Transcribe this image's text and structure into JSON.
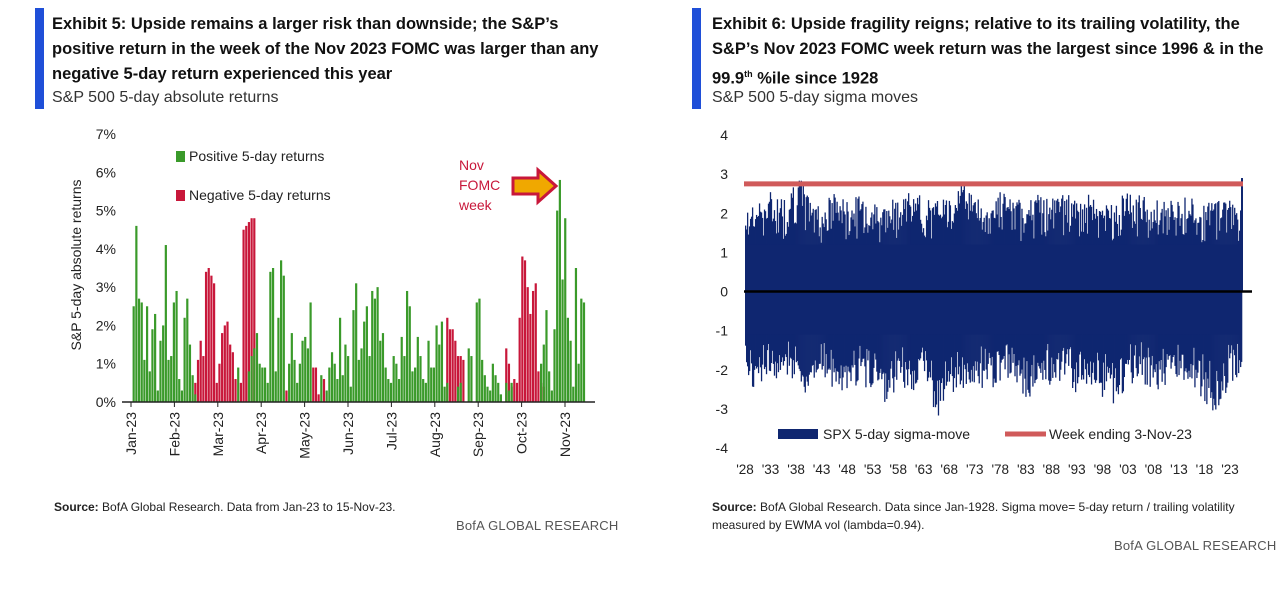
{
  "left": {
    "title_line1": "Exhibit 5: Upside remains a larger risk than downside; the S&P’s",
    "title_line2": "positive return in the week of the Nov 2023 FOMC was larger than any",
    "title_line3": "negative 5-day return experienced this year",
    "subtitle": "S&P 500 5-day absolute returns",
    "source_label": "Source:",
    "source_text": "BofA Global Research. Data from Jan-23 to 15-Nov-23.",
    "brand": "BofA GLOBAL RESEARCH",
    "annotation": [
      "Nov",
      "FOMC",
      "week"
    ]
  },
  "right": {
    "title_line1": "Exhibit 6: Upside fragility reigns; relative to its trailing volatility, the",
    "title_line2": "S&P’s Nov 2023 FOMC week return was the largest since 1996 & in the",
    "title_line3_pre": "99.9",
    "title_line3_sup": "th",
    "title_line3_post": " %ile since 1928",
    "subtitle": "S&P 500 5-day sigma moves",
    "source_label": "Source:",
    "source_text_1": "BofA Global Research. Data since Jan-1928. Sigma move= 5-day return / trailing volatility",
    "source_text_2": "measured by EWMA vol (lambda=0.94).",
    "brand": "BofA GLOBAL RESEARCH"
  },
  "colors": {
    "accent": "#1f4fd8",
    "positive": "#3a9a2a",
    "negative": "#c8173a",
    "sigma": "#0f2670",
    "threshold": "#d05a5a",
    "arrow_fill": "#f0a800",
    "arrow_stroke": "#c8173a",
    "annotation_text": "#c8173a"
  },
  "chart_data": [
    {
      "type": "bar",
      "ylabel": "S&P 5-day absolute returns",
      "ylim": [
        0,
        7
      ],
      "y_ticks": [
        "0%",
        "1%",
        "2%",
        "3%",
        "4%",
        "5%",
        "6%",
        "7%"
      ],
      "x_tick_labels": [
        "Jan-23",
        "Feb-23",
        "Mar-23",
        "Apr-23",
        "May-23",
        "Jun-23",
        "Jul-23",
        "Aug-23",
        "Sep-23",
        "Oct-23",
        "Nov-23"
      ],
      "legend": [
        "Positive 5-day returns",
        "Negative 5-day returns"
      ],
      "legend_position": "top-left",
      "grid": false,
      "series": [
        {
          "name": "Positive 5-day returns",
          "values": [
            0,
            2.5,
            4.6,
            2.7,
            2.6,
            1.1,
            2.5,
            0.8,
            1.9,
            2.3,
            0.3,
            1.6,
            2.0,
            4.1,
            1.1,
            1.2,
            2.6,
            2.9,
            0.6,
            0.3,
            2.2,
            2.7,
            1.5,
            0.7,
            0.2,
            0,
            0,
            0,
            0,
            0,
            0,
            0,
            0,
            0,
            0,
            0,
            0,
            0,
            0,
            0,
            0.9,
            0,
            0,
            0,
            0.8,
            1.2,
            1.4,
            1.8,
            1.0,
            0.9,
            0.9,
            0.5,
            3.4,
            3.5,
            0.8,
            2.2,
            3.7,
            3.3,
            0,
            1.0,
            1.8,
            1.1,
            0.5,
            1.0,
            1.6,
            1.7,
            1.4,
            2.6,
            0,
            0,
            0,
            0.7,
            0,
            0.3,
            0.9,
            1.3,
            1.0,
            0.6,
            2.2,
            0.7,
            1.5,
            1.2,
            0.4,
            2.4,
            3.1,
            1.1,
            1.4,
            2.1,
            2.5,
            1.2,
            2.9,
            2.7,
            3.0,
            1.6,
            1.8,
            0.9,
            0.6,
            0.5,
            1.2,
            1.0,
            0.6,
            1.7,
            1.2,
            2.9,
            2.5,
            0.8,
            0.9,
            1.7,
            1.2,
            0.6,
            0.5,
            1.6,
            0.9,
            0.9,
            2.0,
            1.5,
            2.1,
            0.4,
            0.5,
            0,
            0,
            0,
            0.4,
            0.5,
            0,
            0,
            1.4,
            1.2,
            0,
            2.6,
            2.7,
            1.1,
            0.7,
            0.4,
            0.3,
            1.0,
            0.7,
            0.5,
            0.2,
            0,
            0.5,
            0.3,
            0.5,
            0,
            0,
            0,
            0,
            0,
            0,
            0,
            0,
            0,
            0,
            1.0,
            1.5,
            2.4,
            0.8,
            0.3,
            1.9,
            5.0,
            5.8,
            3.2,
            4.8,
            2.2,
            1.6,
            0.4,
            3.5,
            1.0,
            2.7,
            2.6
          ],
          "color": "#3a9a2a"
        },
        {
          "name": "Negative 5-day returns",
          "values": [
            0,
            0,
            0,
            0,
            0,
            0,
            0,
            0,
            0,
            0,
            0,
            0,
            0,
            0,
            0,
            0,
            0,
            0,
            0,
            0,
            0,
            0,
            0,
            0,
            0.5,
            1.1,
            1.6,
            1.2,
            3.4,
            3.5,
            3.3,
            3.1,
            0.5,
            1.0,
            1.8,
            2.0,
            2.1,
            1.5,
            1.3,
            0.6,
            0,
            0.5,
            4.5,
            4.6,
            4.7,
            4.8,
            4.8,
            0,
            0,
            0,
            0,
            0,
            0,
            0,
            0,
            0,
            0,
            0,
            0.3,
            0,
            0,
            0,
            0,
            0,
            0,
            0,
            0,
            0,
            0.9,
            0.9,
            0.2,
            0,
            0.6,
            0,
            0,
            0,
            0,
            0,
            0,
            0,
            0,
            0,
            0,
            0,
            0,
            0,
            0,
            0,
            0,
            0,
            0,
            0,
            0,
            0,
            0,
            0,
            0,
            0,
            0,
            0,
            0,
            0,
            0,
            0,
            0,
            0,
            0,
            0,
            0,
            0,
            0,
            0,
            0,
            0,
            0,
            0,
            0,
            0,
            2.2,
            1.9,
            1.9,
            1.6,
            1.2,
            1.2,
            1.1,
            0,
            0,
            0,
            0,
            0,
            0,
            0,
            0,
            0,
            0,
            0,
            0,
            0,
            0,
            0,
            1.4,
            1.0,
            0.4,
            0.6,
            0.5,
            2.2,
            3.8,
            3.7,
            3.0,
            2.3,
            2.9,
            3.1,
            0.8,
            0.5,
            0.4,
            0,
            0,
            0,
            0,
            0,
            0,
            0,
            0,
            0,
            0,
            0,
            0,
            0,
            0,
            0,
            0,
            0,
            0
          ],
          "color": "#c8173a"
        }
      ]
    },
    {
      "type": "bar",
      "ylim": [
        -4,
        4
      ],
      "y_ticks": [
        "4",
        "3",
        "2",
        "1",
        "0",
        "-1",
        "-2",
        "-3",
        "-4"
      ],
      "x_tick_labels": [
        "'28",
        "'33",
        "'38",
        "'43",
        "'48",
        "'53",
        "'58",
        "'63",
        "'68",
        "'73",
        "'78",
        "'83",
        "'88",
        "'93",
        "'98",
        "'03",
        "'08",
        "'13",
        "'18",
        "'23"
      ],
      "legend": [
        "SPX 5-day sigma-move",
        "Week ending 3-Nov-23"
      ],
      "legend_position": "bottom",
      "threshold": 2.75,
      "series": [
        {
          "name": "SPX 5-day sigma-move",
          "description_of_envelope": "dense weekly bars roughly between -2.5 and 2.5 sigma, rare spikes to about 3.1 and -3.3",
          "upper_envelope": [
            2.1,
            2.3,
            2.6,
            2.4,
            3.1,
            2.5,
            2.2,
            2.6,
            2.3,
            2.5,
            2.4,
            2.2,
            2.5,
            2.6,
            2.4,
            2.3,
            2.6,
            2.9,
            2.5,
            2.2,
            2.6,
            2.4,
            2.3,
            2.5,
            2.4,
            2.6,
            2.3,
            2.5,
            2.2,
            2.4,
            2.6,
            2.5,
            2.3,
            2.4,
            2.3,
            2.5,
            2.2,
            2.4,
            2.6,
            2.1
          ],
          "lower_envelope": [
            -2.3,
            -2.6,
            -2.1,
            -2.4,
            -2.2,
            -2.8,
            -2.3,
            -2.5,
            -2.7,
            -2.4,
            -2.6,
            -2.9,
            -2.5,
            -2.6,
            -2.3,
            -3.3,
            -2.7,
            -2.5,
            -2.4,
            -2.6,
            -2.3,
            -2.2,
            -2.8,
            -2.5,
            -2.4,
            -2.3,
            -2.6,
            -2.4,
            -2.7,
            -2.9,
            -2.5,
            -2.3,
            -2.6,
            -2.4,
            -2.2,
            -2.5,
            -2.8,
            -3.3,
            -2.4,
            -2.2
          ],
          "color": "#0f2670"
        },
        {
          "name": "Week ending 3-Nov-23",
          "values": [
            2.75,
            2.75
          ],
          "color": "#d05a5a"
        }
      ]
    }
  ]
}
